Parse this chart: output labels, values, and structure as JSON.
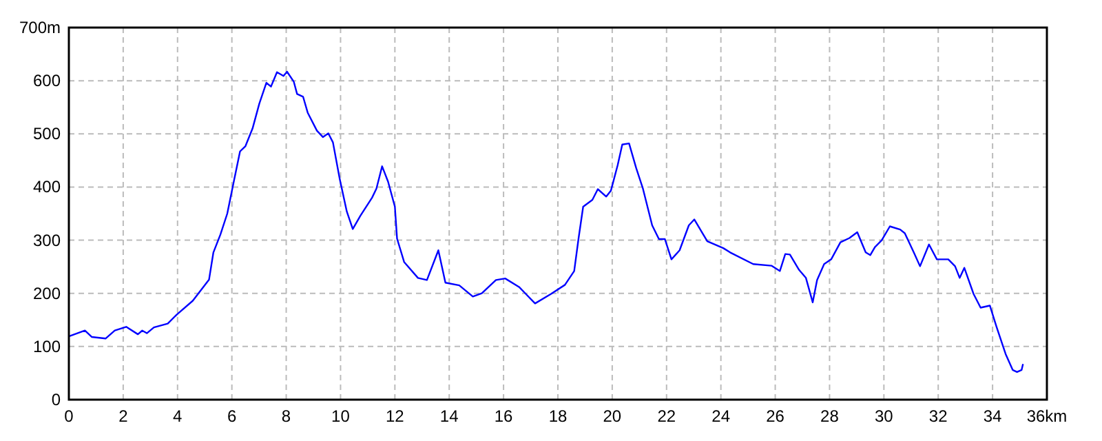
{
  "chart_data": {
    "type": "line",
    "x": [
      0,
      0.59,
      0.84,
      1.35,
      1.69,
      2.11,
      2.54,
      2.7,
      2.87,
      3.13,
      3.64,
      3.97,
      4.56,
      5.16,
      5.32,
      5.58,
      5.83,
      6.09,
      6.3,
      6.5,
      6.76,
      7.01,
      7.27,
      7.44,
      7.66,
      7.9,
      8.03,
      8.28,
      8.4,
      8.62,
      8.79,
      9.13,
      9.35,
      9.55,
      9.72,
      9.97,
      10.23,
      10.45,
      10.73,
      11.16,
      11.32,
      11.53,
      11.75,
      12.0,
      12.08,
      12.34,
      12.85,
      13.18,
      13.6,
      13.86,
      14.37,
      14.87,
      15.2,
      15.72,
      16.06,
      16.57,
      17.16,
      17.75,
      18.26,
      18.6,
      18.76,
      18.93,
      19.27,
      19.47,
      19.78,
      19.95,
      20.2,
      20.37,
      20.62,
      20.88,
      21.13,
      21.47,
      21.72,
      21.94,
      22.18,
      22.48,
      22.82,
      23.02,
      23.5,
      24.09,
      24.34,
      25.19,
      25.86,
      26.17,
      26.37,
      26.54,
      26.88,
      27.13,
      27.38,
      27.54,
      27.8,
      28.06,
      28.4,
      28.73,
      29.02,
      29.33,
      29.5,
      29.67,
      29.92,
      30.22,
      30.6,
      30.77,
      31.1,
      31.33,
      31.66,
      31.95,
      32.37,
      32.62,
      32.79,
      32.96,
      33.3,
      33.56,
      33.9,
      34.14,
      34.48,
      34.74,
      34.9,
      35.07,
      35.12
    ],
    "series": [
      {
        "color": "#0000ff",
        "values": [
          119,
          130,
          118,
          115,
          130,
          137,
          123,
          130,
          125,
          136,
          143,
          160,
          186,
          226,
          277,
          311,
          350,
          415,
          467,
          477,
          510,
          557,
          596,
          589,
          616,
          609,
          617,
          598,
          575,
          570,
          540,
          506,
          494,
          501,
          484,
          415,
          354,
          321,
          346,
          380,
          397,
          439,
          410,
          363,
          303,
          259,
          229,
          225,
          281,
          220,
          215,
          194,
          200,
          225,
          228,
          212,
          181,
          199,
          216,
          242,
          303,
          363,
          376,
          396,
          382,
          393,
          441,
          480,
          482,
          436,
          397,
          328,
          302,
          302,
          264,
          281,
          328,
          339,
          298,
          285,
          277,
          255,
          252,
          242,
          274,
          273,
          244,
          229,
          183,
          225,
          255,
          264,
          296,
          304,
          315,
          277,
          272,
          287,
          300,
          326,
          320,
          313,
          277,
          251,
          292,
          264,
          264,
          251,
          229,
          248,
          199,
          173,
          177,
          138,
          86,
          56,
          52,
          56,
          67
        ]
      }
    ],
    "xlim": [
      0,
      36
    ],
    "xticks": [
      0,
      2,
      4,
      6,
      8,
      10,
      12,
      14,
      16,
      18,
      20,
      22,
      24,
      26,
      28,
      30,
      32,
      34,
      {
        "value": 36,
        "label": "36km"
      }
    ],
    "ylim": [
      0,
      700
    ],
    "yticks": [
      0,
      100,
      200,
      300,
      400,
      500,
      600,
      {
        "value": 700,
        "label": "700m"
      }
    ],
    "grid": true,
    "marker": "none",
    "line_style": "solid"
  }
}
